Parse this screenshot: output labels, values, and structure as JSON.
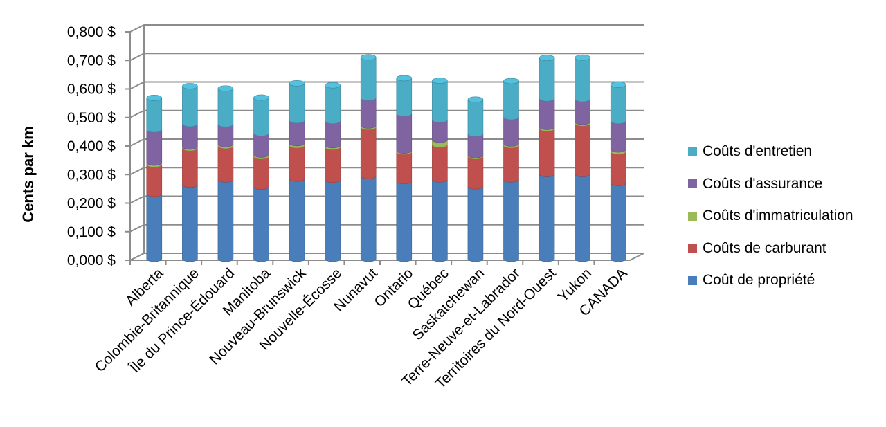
{
  "chart_data": {
    "type": "bar",
    "stacked": true,
    "title": "",
    "xlabel": "",
    "ylabel": "Cents par km",
    "ylim": [
      0,
      0.8
    ],
    "yticks": [
      "0,000 $",
      "0,100 $",
      "0,200 $",
      "0,300 $",
      "0,400 $",
      "0,500 $",
      "0,600 $",
      "0,700 $",
      "0,800 $"
    ],
    "categories": [
      "Alberta",
      "Colombie-Britannique",
      "Île du Prince-Édouard",
      "Manitoba",
      "Nouveau-Brunswick",
      "Nouvelle-Écosse",
      "Nunavut",
      "Ontario",
      "Québec",
      "Saskatchewan",
      "Terre-Neuve-et-Labrador",
      "Territoires du Nord-Ouest",
      "Yukon",
      "CANADA"
    ],
    "series": [
      {
        "name": "Coût de propriété",
        "color": "#4a7ebb",
        "values": [
          0.228,
          0.26,
          0.278,
          0.253,
          0.281,
          0.277,
          0.29,
          0.272,
          0.278,
          0.254,
          0.278,
          0.297,
          0.297,
          0.266
        ]
      },
      {
        "name": "Coûts de carburant",
        "color": "#c0504d",
        "values": [
          0.103,
          0.128,
          0.118,
          0.106,
          0.117,
          0.115,
          0.172,
          0.103,
          0.122,
          0.105,
          0.12,
          0.16,
          0.178,
          0.11
        ]
      },
      {
        "name": "Coûts d'immatriculation",
        "color": "#9bbb59",
        "values": [
          0.006,
          0.005,
          0.006,
          0.006,
          0.007,
          0.006,
          0.005,
          0.004,
          0.017,
          0.004,
          0.006,
          0.005,
          0.005,
          0.007
        ]
      },
      {
        "name": "Coûts d'assurance",
        "color": "#8064a2",
        "values": [
          0.116,
          0.08,
          0.07,
          0.075,
          0.08,
          0.085,
          0.097,
          0.13,
          0.07,
          0.075,
          0.093,
          0.1,
          0.08,
          0.1
        ]
      },
      {
        "name": "Coûts d'entretien",
        "color": "#4bacc6",
        "values": [
          0.111,
          0.132,
          0.125,
          0.125,
          0.13,
          0.125,
          0.142,
          0.124,
          0.137,
          0.12,
          0.126,
          0.142,
          0.145,
          0.127
        ]
      }
    ],
    "legend": "right",
    "grid": true
  }
}
